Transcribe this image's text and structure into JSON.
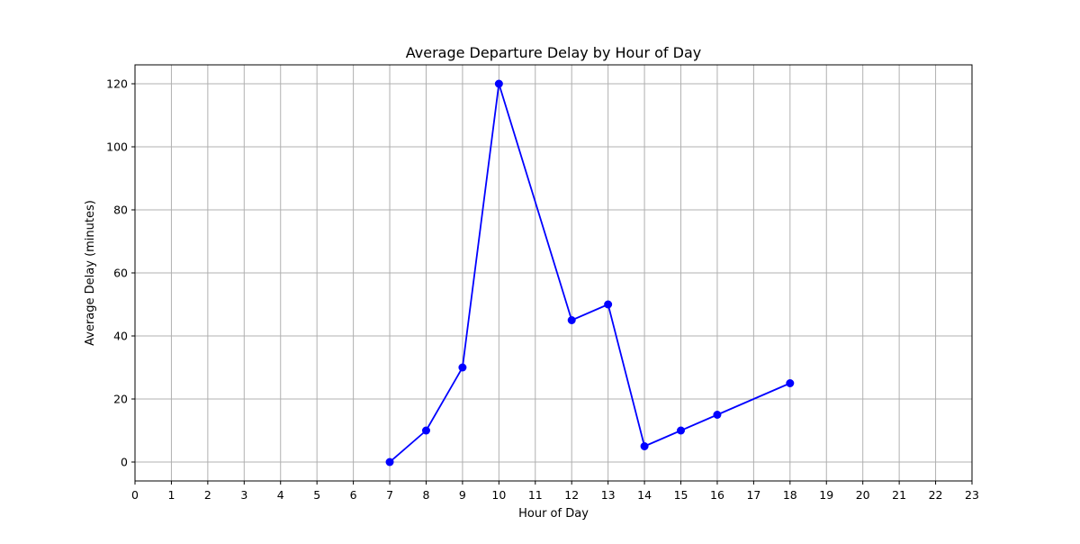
{
  "chart_data": {
    "type": "line",
    "title": "Average Departure Delay by Hour of Day",
    "xlabel": "Hour of Day",
    "ylabel": "Average Delay (minutes)",
    "xlim": [
      0,
      23
    ],
    "ylim": [
      -6,
      126
    ],
    "xticks": [
      0,
      1,
      2,
      3,
      4,
      5,
      6,
      7,
      8,
      9,
      10,
      11,
      12,
      13,
      14,
      15,
      16,
      17,
      18,
      19,
      20,
      21,
      22,
      23
    ],
    "yticks": [
      0,
      20,
      40,
      60,
      80,
      100,
      120
    ],
    "grid": true,
    "legend": "none",
    "series": [
      {
        "color": "#0000ff",
        "marker": "circle",
        "x": [
          7,
          8,
          9,
          10,
          12,
          13,
          14,
          15,
          16,
          18
        ],
        "y": [
          0,
          10,
          30,
          120,
          45,
          50,
          5,
          10,
          15,
          25
        ]
      }
    ]
  }
}
